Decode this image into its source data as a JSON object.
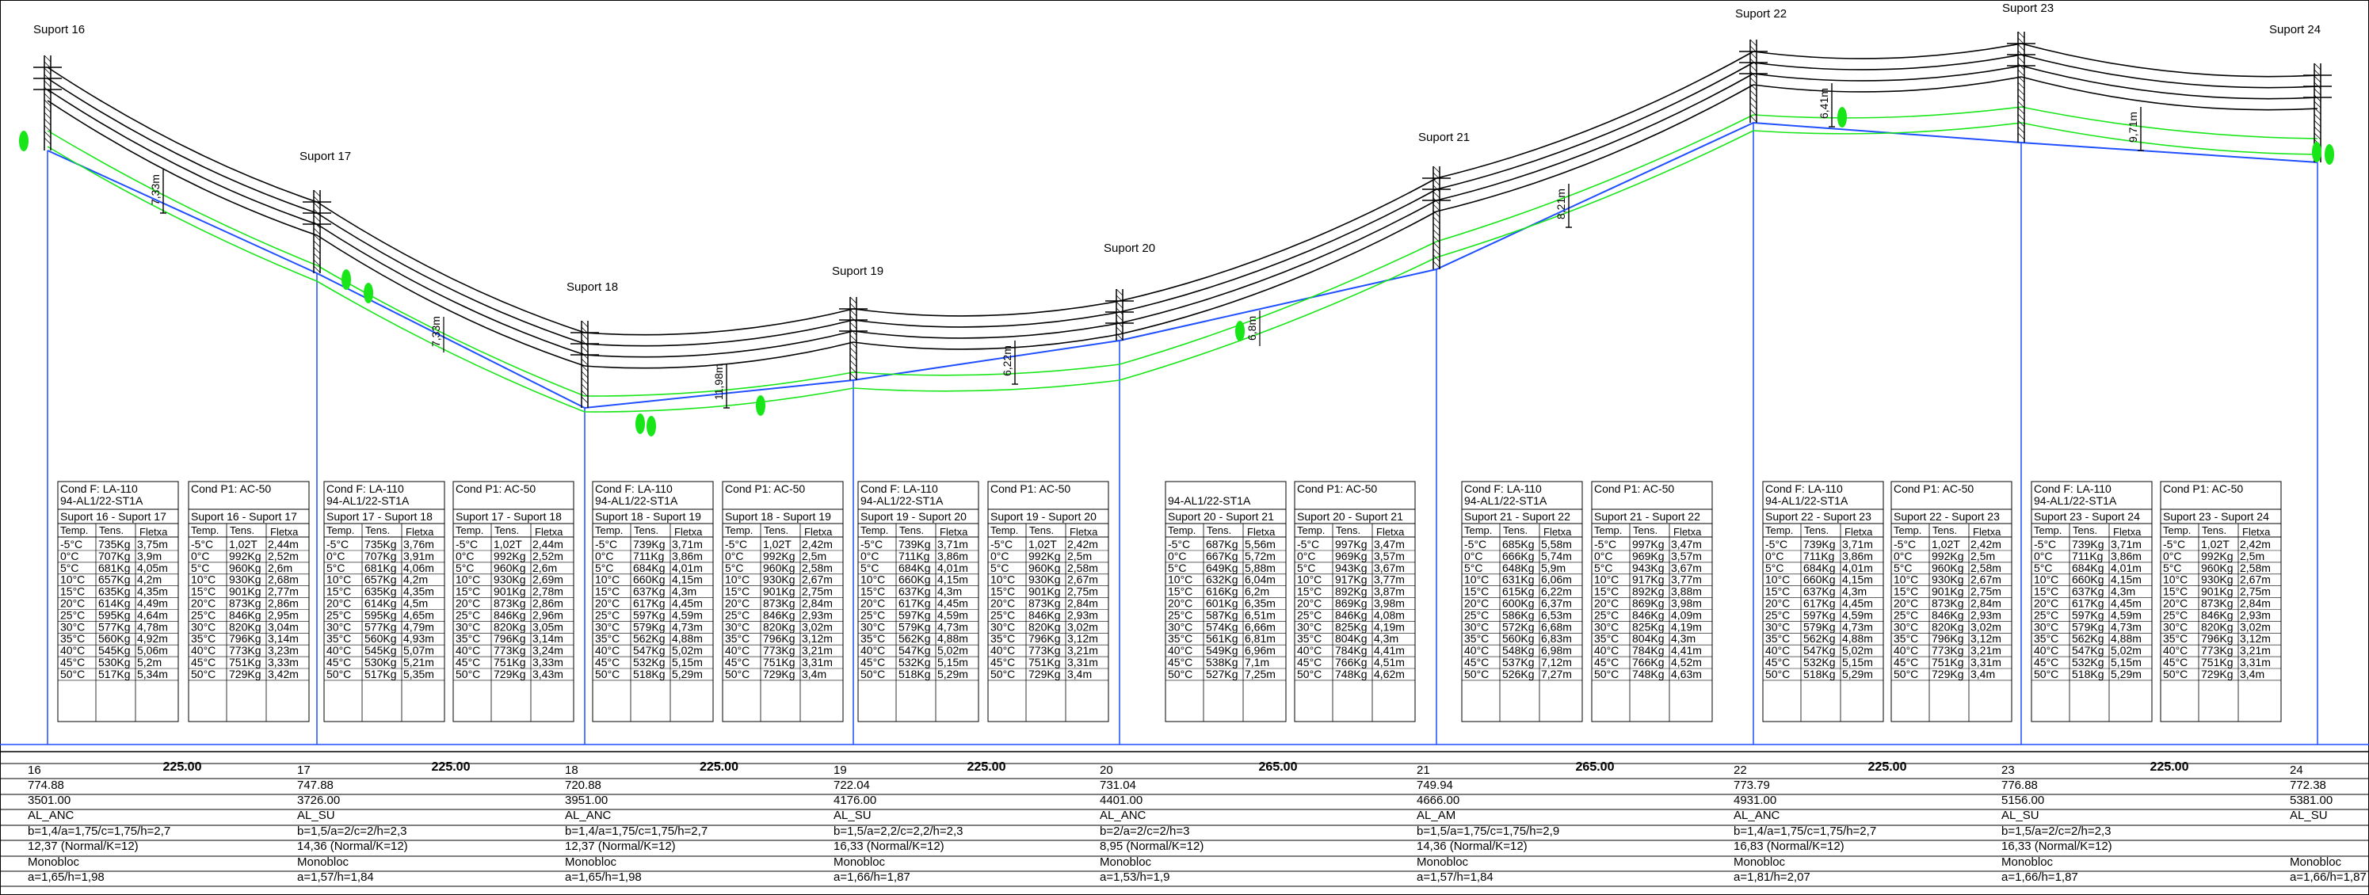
{
  "colors": {
    "conductor": "#000000",
    "ground_profile": "#1f4fff",
    "clearance": "#19e619",
    "table_border": "#000000"
  },
  "supports": [
    {
      "label": "Suport 16",
      "number": "16",
      "elevation": "774.88",
      "chainage": "3501.00",
      "type": "AL_ANC",
      "geom": "b=1,4/a=1,75/c=1,75/h=2,7",
      "height": "12,37 (Normal/K=12)",
      "foundation": "Monobloc",
      "found_dims": "a=1,65/h=1,98"
    },
    {
      "label": "Suport 17",
      "number": "17",
      "elevation": "747.88",
      "chainage": "3726.00",
      "type": "AL_SU",
      "geom": "b=1,5/a=2/c=2/h=2,3",
      "height": "14,36 (Normal/K=12)",
      "foundation": "Monobloc",
      "found_dims": "a=1,57/h=1,84"
    },
    {
      "label": "Suport 18",
      "number": "18",
      "elevation": "720.88",
      "chainage": "3951.00",
      "type": "AL_ANC",
      "geom": "b=1,4/a=1,75/c=1,75/h=2,7",
      "height": "12,37 (Normal/K=12)",
      "foundation": "Monobloc",
      "found_dims": "a=1,65/h=1,98"
    },
    {
      "label": "Suport 19",
      "number": "19",
      "elevation": "722.04",
      "chainage": "4176.00",
      "type": "AL_SU",
      "geom": "b=1,5/a=2,2/c=2,2/h=2,3",
      "height": "16,33 (Normal/K=12)",
      "foundation": "Monobloc",
      "found_dims": "a=1,66/h=1,87"
    },
    {
      "label": "Suport 20",
      "number": "20",
      "elevation": "731.04",
      "chainage": "4401.00",
      "type": "AL_ANC",
      "geom": "b=2/a=2/c=2/h=3",
      "height": "8,95 (Normal/K=12)",
      "foundation": "Monobloc",
      "found_dims": "a=1,53/h=1,9"
    },
    {
      "label": "Suport 21",
      "number": "21",
      "elevation": "749.94",
      "chainage": "4666.00",
      "type": "AL_AM",
      "geom": "b=1,5/a=1,75/c=1,75/h=2,9",
      "height": "14,36 (Normal/K=12)",
      "foundation": "Monobloc",
      "found_dims": "a=1,57/h=1,84"
    },
    {
      "label": "Suport 22",
      "number": "22",
      "elevation": "773.79",
      "chainage": "4931.00",
      "type": "AL_ANC",
      "geom": "b=1,4/a=1,75/c=1,75/h=2,7",
      "height": "16,83 (Normal/K=12)",
      "foundation": "Monobloc",
      "found_dims": "a=1,81/h=2,07"
    },
    {
      "label": "Suport 23",
      "number": "23",
      "elevation": "776.88",
      "chainage": "5156.00",
      "type": "AL_SU",
      "geom": "b=1,5/a=2/c=2/h=2,3",
      "height": "16,33 (Normal/K=12)",
      "foundation": "Monobloc",
      "found_dims": "a=1,66/h=1,87"
    },
    {
      "label": "Suport 24",
      "number": "24",
      "elevation": "772.38",
      "chainage": "5381.00",
      "type": "AL_SU",
      "geom": "",
      "height": "",
      "foundation": "Monobloc",
      "found_dims": "a=1,66/h=1,87"
    }
  ],
  "spans": [
    "225.00",
    "225.00",
    "225.00",
    "225.00",
    "265.00",
    "265.00",
    "225.00",
    "225.00"
  ],
  "span_clearances": [
    "7,33m",
    "11,98m",
    "6,22m",
    "8,21m",
    "6,41m",
    "9,71m"
  ],
  "span_clearances_secondary": [
    "7,33m",
    "6,22m",
    "6,8m"
  ],
  "tables": {
    "header_cond": "Cond F: LA-110",
    "header_cond_sub": "94-AL1/22-ST1A",
    "header_p1": "Cond P1: AC-50",
    "col_temp": "Temp.",
    "col_tens": "Tens.",
    "col_fletxa": "Fletxa",
    "temps": [
      "-5°C",
      "0°C",
      "5°C",
      "10°C",
      "15°C",
      "20°C",
      "25°C",
      "30°C",
      "35°C",
      "40°C",
      "45°C",
      "50°C"
    ],
    "spans": [
      {
        "title": "Suport 16 - Suport 17",
        "has_cond_header": true,
        "cond": [
          [
            "735Kg",
            "3,75m"
          ],
          [
            "707Kg",
            "3,9m"
          ],
          [
            "681Kg",
            "4,05m"
          ],
          [
            "657Kg",
            "4,2m"
          ],
          [
            "635Kg",
            "4,35m"
          ],
          [
            "614Kg",
            "4,49m"
          ],
          [
            "595Kg",
            "4,64m"
          ],
          [
            "577Kg",
            "4,78m"
          ],
          [
            "560Kg",
            "4,92m"
          ],
          [
            "545Kg",
            "5,06m"
          ],
          [
            "530Kg",
            "5,2m"
          ],
          [
            "517Kg",
            "5,34m"
          ]
        ],
        "p1": [
          [
            "1,02T",
            "2,44m"
          ],
          [
            "992Kg",
            "2,52m"
          ],
          [
            "960Kg",
            "2,6m"
          ],
          [
            "930Kg",
            "2,68m"
          ],
          [
            "901Kg",
            "2,77m"
          ],
          [
            "873Kg",
            "2,86m"
          ],
          [
            "846Kg",
            "2,95m"
          ],
          [
            "820Kg",
            "3,04m"
          ],
          [
            "796Kg",
            "3,14m"
          ],
          [
            "773Kg",
            "3,23m"
          ],
          [
            "751Kg",
            "3,33m"
          ],
          [
            "729Kg",
            "3,42m"
          ]
        ]
      },
      {
        "title": "Suport 17 - Suport 18",
        "has_cond_header": true,
        "cond": [
          [
            "735Kg",
            "3,76m"
          ],
          [
            "707Kg",
            "3,91m"
          ],
          [
            "681Kg",
            "4,06m"
          ],
          [
            "657Kg",
            "4,2m"
          ],
          [
            "635Kg",
            "4,35m"
          ],
          [
            "614Kg",
            "4,5m"
          ],
          [
            "595Kg",
            "4,65m"
          ],
          [
            "577Kg",
            "4,79m"
          ],
          [
            "560Kg",
            "4,93m"
          ],
          [
            "545Kg",
            "5,07m"
          ],
          [
            "530Kg",
            "5,21m"
          ],
          [
            "517Kg",
            "5,35m"
          ]
        ],
        "p1": [
          [
            "1,02T",
            "2,44m"
          ],
          [
            "992Kg",
            "2,52m"
          ],
          [
            "960Kg",
            "2,6m"
          ],
          [
            "930Kg",
            "2,69m"
          ],
          [
            "901Kg",
            "2,78m"
          ],
          [
            "873Kg",
            "2,86m"
          ],
          [
            "846Kg",
            "2,96m"
          ],
          [
            "820Kg",
            "3,05m"
          ],
          [
            "796Kg",
            "3,14m"
          ],
          [
            "773Kg",
            "3,24m"
          ],
          [
            "751Kg",
            "3,33m"
          ],
          [
            "729Kg",
            "3,43m"
          ]
        ]
      },
      {
        "title": "Suport 18 - Suport 19",
        "has_cond_header": true,
        "cond": [
          [
            "739Kg",
            "3,71m"
          ],
          [
            "711Kg",
            "3,86m"
          ],
          [
            "684Kg",
            "4,01m"
          ],
          [
            "660Kg",
            "4,15m"
          ],
          [
            "637Kg",
            "4,3m"
          ],
          [
            "617Kg",
            "4,45m"
          ],
          [
            "597Kg",
            "4,59m"
          ],
          [
            "579Kg",
            "4,73m"
          ],
          [
            "562Kg",
            "4,88m"
          ],
          [
            "547Kg",
            "5,02m"
          ],
          [
            "532Kg",
            "5,15m"
          ],
          [
            "518Kg",
            "5,29m"
          ]
        ],
        "p1": [
          [
            "1,02T",
            "2,42m"
          ],
          [
            "992Kg",
            "2,5m"
          ],
          [
            "960Kg",
            "2,58m"
          ],
          [
            "930Kg",
            "2,67m"
          ],
          [
            "901Kg",
            "2,75m"
          ],
          [
            "873Kg",
            "2,84m"
          ],
          [
            "846Kg",
            "2,93m"
          ],
          [
            "820Kg",
            "3,02m"
          ],
          [
            "796Kg",
            "3,12m"
          ],
          [
            "773Kg",
            "3,21m"
          ],
          [
            "751Kg",
            "3,31m"
          ],
          [
            "729Kg",
            "3,4m"
          ]
        ]
      },
      {
        "title": "Suport 19 - Suport 20",
        "has_cond_header": true,
        "cond": [
          [
            "739Kg",
            "3,71m"
          ],
          [
            "711Kg",
            "3,86m"
          ],
          [
            "684Kg",
            "4,01m"
          ],
          [
            "660Kg",
            "4,15m"
          ],
          [
            "637Kg",
            "4,3m"
          ],
          [
            "617Kg",
            "4,45m"
          ],
          [
            "597Kg",
            "4,59m"
          ],
          [
            "579Kg",
            "4,73m"
          ],
          [
            "562Kg",
            "4,88m"
          ],
          [
            "547Kg",
            "5,02m"
          ],
          [
            "532Kg",
            "5,15m"
          ],
          [
            "518Kg",
            "5,29m"
          ]
        ],
        "p1": [
          [
            "1,02T",
            "2,42m"
          ],
          [
            "992Kg",
            "2,5m"
          ],
          [
            "960Kg",
            "2,58m"
          ],
          [
            "930Kg",
            "2,67m"
          ],
          [
            "901Kg",
            "2,75m"
          ],
          [
            "873Kg",
            "2,84m"
          ],
          [
            "846Kg",
            "2,93m"
          ],
          [
            "820Kg",
            "3,02m"
          ],
          [
            "796Kg",
            "3,12m"
          ],
          [
            "773Kg",
            "3,21m"
          ],
          [
            "751Kg",
            "3,31m"
          ],
          [
            "729Kg",
            "3,4m"
          ]
        ]
      },
      {
        "title": "Suport 20 - Suport 21",
        "has_cond_header": false,
        "cond": [
          [
            "687Kg",
            "5,56m"
          ],
          [
            "667Kg",
            "5,72m"
          ],
          [
            "649Kg",
            "5,88m"
          ],
          [
            "632Kg",
            "6,04m"
          ],
          [
            "616Kg",
            "6,2m"
          ],
          [
            "601Kg",
            "6,35m"
          ],
          [
            "587Kg",
            "6,51m"
          ],
          [
            "574Kg",
            "6,66m"
          ],
          [
            "561Kg",
            "6,81m"
          ],
          [
            "549Kg",
            "6,96m"
          ],
          [
            "538Kg",
            "7,1m"
          ],
          [
            "527Kg",
            "7,25m"
          ]
        ],
        "p1": [
          [
            "997Kg",
            "3,47m"
          ],
          [
            "969Kg",
            "3,57m"
          ],
          [
            "943Kg",
            "3,67m"
          ],
          [
            "917Kg",
            "3,77m"
          ],
          [
            "892Kg",
            "3,87m"
          ],
          [
            "869Kg",
            "3,98m"
          ],
          [
            "846Kg",
            "4,08m"
          ],
          [
            "825Kg",
            "4,19m"
          ],
          [
            "804Kg",
            "4,3m"
          ],
          [
            "784Kg",
            "4,41m"
          ],
          [
            "766Kg",
            "4,51m"
          ],
          [
            "748Kg",
            "4,62m"
          ]
        ]
      },
      {
        "title": "Suport 21 - Suport 22",
        "has_cond_header": true,
        "cond": [
          [
            "685Kg",
            "5,58m"
          ],
          [
            "666Kg",
            "5,74m"
          ],
          [
            "648Kg",
            "5,9m"
          ],
          [
            "631Kg",
            "6,06m"
          ],
          [
            "615Kg",
            "6,22m"
          ],
          [
            "600Kg",
            "6,37m"
          ],
          [
            "586Kg",
            "6,53m"
          ],
          [
            "572Kg",
            "6,68m"
          ],
          [
            "560Kg",
            "6,83m"
          ],
          [
            "548Kg",
            "6,98m"
          ],
          [
            "537Kg",
            "7,12m"
          ],
          [
            "526Kg",
            "7,27m"
          ]
        ],
        "p1": [
          [
            "997Kg",
            "3,47m"
          ],
          [
            "969Kg",
            "3,57m"
          ],
          [
            "943Kg",
            "3,67m"
          ],
          [
            "917Kg",
            "3,77m"
          ],
          [
            "892Kg",
            "3,88m"
          ],
          [
            "869Kg",
            "3,98m"
          ],
          [
            "846Kg",
            "4,09m"
          ],
          [
            "825Kg",
            "4,19m"
          ],
          [
            "804Kg",
            "4,3m"
          ],
          [
            "784Kg",
            "4,41m"
          ],
          [
            "766Kg",
            "4,52m"
          ],
          [
            "748Kg",
            "4,63m"
          ]
        ]
      },
      {
        "title": "Suport 22 - Suport 23",
        "has_cond_header": true,
        "cond": [
          [
            "739Kg",
            "3,71m"
          ],
          [
            "711Kg",
            "3,86m"
          ],
          [
            "684Kg",
            "4,01m"
          ],
          [
            "660Kg",
            "4,15m"
          ],
          [
            "637Kg",
            "4,3m"
          ],
          [
            "617Kg",
            "4,45m"
          ],
          [
            "597Kg",
            "4,59m"
          ],
          [
            "579Kg",
            "4,73m"
          ],
          [
            "562Kg",
            "4,88m"
          ],
          [
            "547Kg",
            "5,02m"
          ],
          [
            "532Kg",
            "5,15m"
          ],
          [
            "518Kg",
            "5,29m"
          ]
        ],
        "p1": [
          [
            "1,02T",
            "2,42m"
          ],
          [
            "992Kg",
            "2,5m"
          ],
          [
            "960Kg",
            "2,58m"
          ],
          [
            "930Kg",
            "2,67m"
          ],
          [
            "901Kg",
            "2,75m"
          ],
          [
            "873Kg",
            "2,84m"
          ],
          [
            "846Kg",
            "2,93m"
          ],
          [
            "820Kg",
            "3,02m"
          ],
          [
            "796Kg",
            "3,12m"
          ],
          [
            "773Kg",
            "3,21m"
          ],
          [
            "751Kg",
            "3,31m"
          ],
          [
            "729Kg",
            "3,4m"
          ]
        ]
      },
      {
        "title": "Suport 23 - Suport 24",
        "has_cond_header": true,
        "cond": [
          [
            "739Kg",
            "3,71m"
          ],
          [
            "711Kg",
            "3,86m"
          ],
          [
            "684Kg",
            "4,01m"
          ],
          [
            "660Kg",
            "4,15m"
          ],
          [
            "637Kg",
            "4,3m"
          ],
          [
            "617Kg",
            "4,45m"
          ],
          [
            "597Kg",
            "4,59m"
          ],
          [
            "579Kg",
            "4,73m"
          ],
          [
            "562Kg",
            "4,88m"
          ],
          [
            "547Kg",
            "5,02m"
          ],
          [
            "532Kg",
            "5,15m"
          ],
          [
            "518Kg",
            "5,29m"
          ]
        ],
        "p1": [
          [
            "1,02T",
            "2,42m"
          ],
          [
            "992Kg",
            "2,5m"
          ],
          [
            "960Kg",
            "2,58m"
          ],
          [
            "930Kg",
            "2,67m"
          ],
          [
            "901Kg",
            "2,75m"
          ],
          [
            "873Kg",
            "2,84m"
          ],
          [
            "846Kg",
            "2,93m"
          ],
          [
            "820Kg",
            "3,02m"
          ],
          [
            "796Kg",
            "3,12m"
          ],
          [
            "773Kg",
            "3,21m"
          ],
          [
            "751Kg",
            "3,31m"
          ],
          [
            "729Kg",
            "3,4m"
          ]
        ]
      }
    ]
  }
}
